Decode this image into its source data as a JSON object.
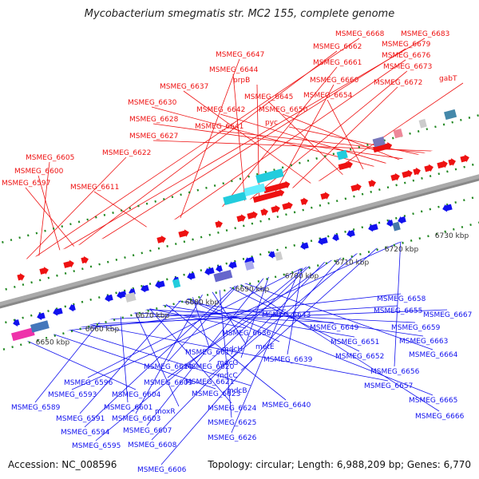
{
  "title": "Mycobacterium smegmatis str. MC2 155, complete genome",
  "footer": {
    "accession": "Accession: NC_008596",
    "topology": "Topology: circular; Length: 6,988,209 bp; Genes: 6,770"
  },
  "scale_labels": [
    "6650 kbp",
    "6660 kbp",
    "6670 kbp",
    "6680 kbp",
    "6690 kbp",
    "6700 kbp",
    "6710 kbp",
    "6720 kbp",
    "6730 kbp"
  ],
  "forward_labels": [
    "MSMEG_6668",
    "MSMEG_6683",
    "MSMEG_6662",
    "MSMEG_6679",
    "MSMEG_6676",
    "MSMEG_6647",
    "MSMEG_6661",
    "MSMEG_6673",
    "MSMEG_6644",
    "prpB",
    "MSMEG_6660",
    "MSMEG_6672",
    "gabT",
    "MSMEG_6637",
    "MSMEG_6645",
    "MSMEG_6654",
    "MSMEG_6630",
    "MSMEG_6642",
    "MSMEG_6650",
    "MSMEG_6628",
    "pyc",
    "MSMEG_6641",
    "MSMEG_6627",
    "MSMEG_6622",
    "MSMEG_6605",
    "MSMEG_6600",
    "MSMEG_6597",
    "MSMEG_6611"
  ],
  "reverse_labels": [
    "MSMEG_6658",
    "MSMEG_6655",
    "MSMEG_6667",
    "MSMEG_6643",
    "MSMEG_6649",
    "MSMEG_6659",
    "MSMEG_6636",
    "MSMEG_6651",
    "MSMEG_6663",
    "metE",
    "MSMEG_6617",
    "mdcH",
    "MSMEG_6652",
    "MSMEG_6664",
    "MSMEG_6610",
    "mdcG",
    "MSMEG_6639",
    "MSMEG_6620",
    "MSMEG_6596",
    "MSMEG_6609",
    "MSMEG_6621",
    "mdcC",
    "MSMEG_6656",
    "MSMEG_6593",
    "MSMEG_6604",
    "MSMEG_6623",
    "mdcB",
    "MSMEG_6657",
    "MSMEG_6589",
    "MSMEG_6601",
    "moxR",
    "MSMEG_6624",
    "MSMEG_6640",
    "MSMEG_6665",
    "MSMEG_6591",
    "MSMEG_6603",
    "MSMEG_6625",
    "MSMEG_6666",
    "MSMEG_6594",
    "MSMEG_6607",
    "MSMEG_6626",
    "MSMEG_6595",
    "MSMEG_6608",
    "MSMEG_6606"
  ],
  "colors": {
    "forward": "#ee1111",
    "reverse": "#1111ee",
    "backbone": "#888888",
    "scale": "#228822"
  }
}
